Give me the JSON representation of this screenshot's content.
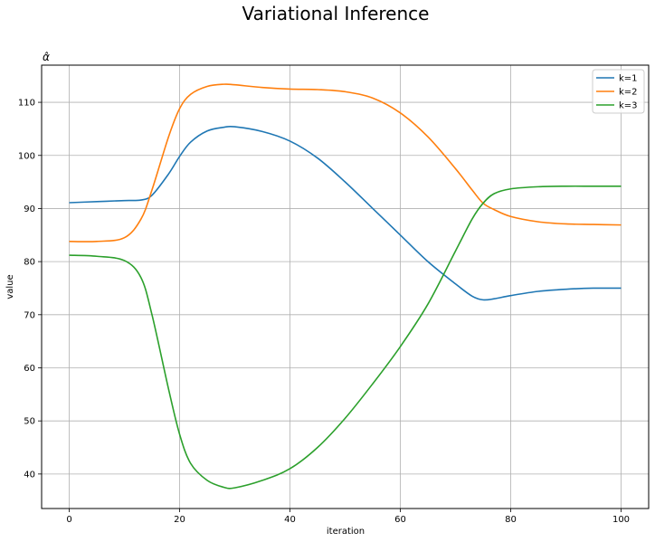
{
  "figure": {
    "suptitle": "Variational Inference"
  },
  "chart_data": {
    "type": "line",
    "title": "α̂",
    "xlabel": "iteration",
    "ylabel": "value",
    "xlim": [
      -5,
      105
    ],
    "ylim": [
      33.5,
      117
    ],
    "xticks": [
      0,
      20,
      40,
      60,
      80,
      100
    ],
    "yticks": [
      40,
      50,
      60,
      70,
      80,
      90,
      100,
      110
    ],
    "grid": true,
    "legend_position": "top-right",
    "x": [
      0,
      5,
      10,
      13,
      15,
      18,
      20,
      22,
      25,
      28,
      30,
      35,
      40,
      45,
      50,
      55,
      60,
      65,
      70,
      73,
      75,
      77,
      80,
      85,
      90,
      95,
      100
    ],
    "series": [
      {
        "name": "k=1",
        "color": "#1f77b4",
        "values": [
          91.1,
          91.3,
          91.5,
          91.6,
          92.5,
          96.5,
          99.8,
          102.5,
          104.6,
          105.3,
          105.4,
          104.5,
          102.7,
          99.5,
          95.0,
          90.0,
          85.0,
          80.0,
          75.8,
          73.5,
          72.8,
          73.0,
          73.6,
          74.4,
          74.8,
          75.0,
          75.0
        ]
      },
      {
        "name": "k=2",
        "color": "#ff7f0e",
        "values": [
          83.8,
          83.8,
          84.5,
          88.0,
          93.5,
          103.5,
          108.8,
          111.5,
          113.0,
          113.4,
          113.3,
          112.8,
          112.5,
          112.4,
          112.0,
          110.8,
          108.0,
          103.5,
          97.5,
          93.5,
          91.0,
          89.8,
          88.5,
          87.5,
          87.1,
          87.0,
          86.9
        ]
      },
      {
        "name": "k=3",
        "color": "#2ca02c",
        "values": [
          81.2,
          81.0,
          80.2,
          77.0,
          70.0,
          56.0,
          47.5,
          42.0,
          38.8,
          37.5,
          37.4,
          38.8,
          41.0,
          45.0,
          50.5,
          57.0,
          64.0,
          72.0,
          82.0,
          88.0,
          91.0,
          92.8,
          93.7,
          94.1,
          94.2,
          94.2,
          94.2
        ]
      }
    ]
  }
}
